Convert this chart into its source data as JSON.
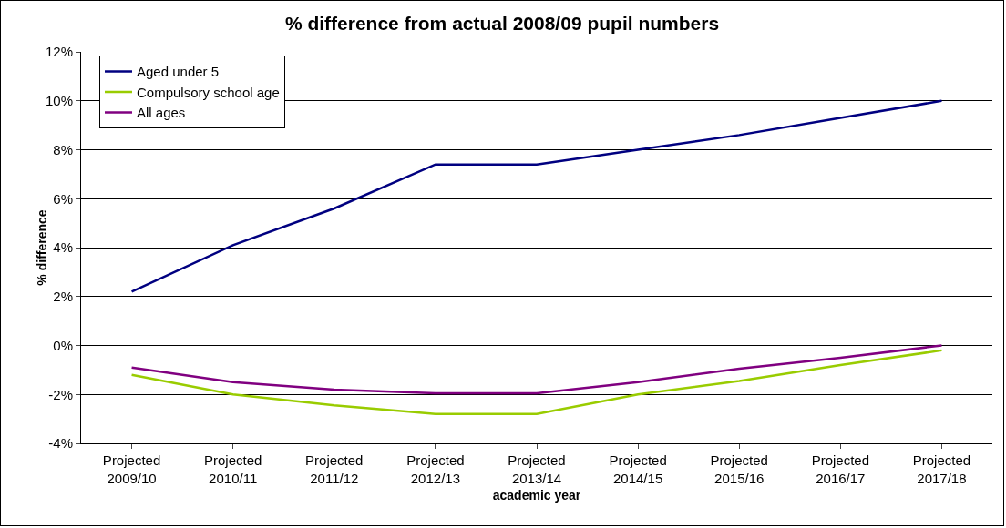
{
  "chart_data": {
    "type": "line",
    "title": "% difference from actual 2008/09 pupil numbers",
    "xlabel": "academic year",
    "ylabel": "% difference",
    "categories": [
      "Projected 2009/10",
      "Projected 2010/11",
      "Projected 2011/12",
      "Projected 2012/13",
      "Projected 2013/14",
      "Projected 2014/15",
      "Projected 2015/16",
      "Projected 2016/17",
      "Projected 2017/18"
    ],
    "series": [
      {
        "name": "Aged under 5",
        "color": "#000080",
        "values": [
          2.2,
          4.1,
          5.6,
          7.4,
          7.4,
          8.0,
          8.6,
          9.3,
          10.0
        ]
      },
      {
        "name": "Compulsory school age",
        "color": "#99cc00",
        "values": [
          -1.2,
          -2.0,
          -2.45,
          -2.8,
          -2.8,
          -2.0,
          -1.45,
          -0.8,
          -0.2
        ]
      },
      {
        "name": "All ages",
        "color": "#800080",
        "values": [
          -0.9,
          -1.5,
          -1.8,
          -1.95,
          -1.95,
          -1.5,
          -0.95,
          -0.5,
          0.0
        ]
      }
    ],
    "ylim": [
      -4,
      12
    ],
    "yticks": [
      {
        "value": -4,
        "label": "-4%"
      },
      {
        "value": -2,
        "label": "-2%"
      },
      {
        "value": 0,
        "label": "0%"
      },
      {
        "value": 2,
        "label": "2%"
      },
      {
        "value": 4,
        "label": "4%"
      },
      {
        "value": 6,
        "label": "6%"
      },
      {
        "value": 8,
        "label": "8%"
      },
      {
        "value": 10,
        "label": "10%"
      },
      {
        "value": 12,
        "label": "12%"
      }
    ],
    "grid": "y",
    "legend": "top left",
    "marker": "none",
    "line_style": "solid"
  }
}
